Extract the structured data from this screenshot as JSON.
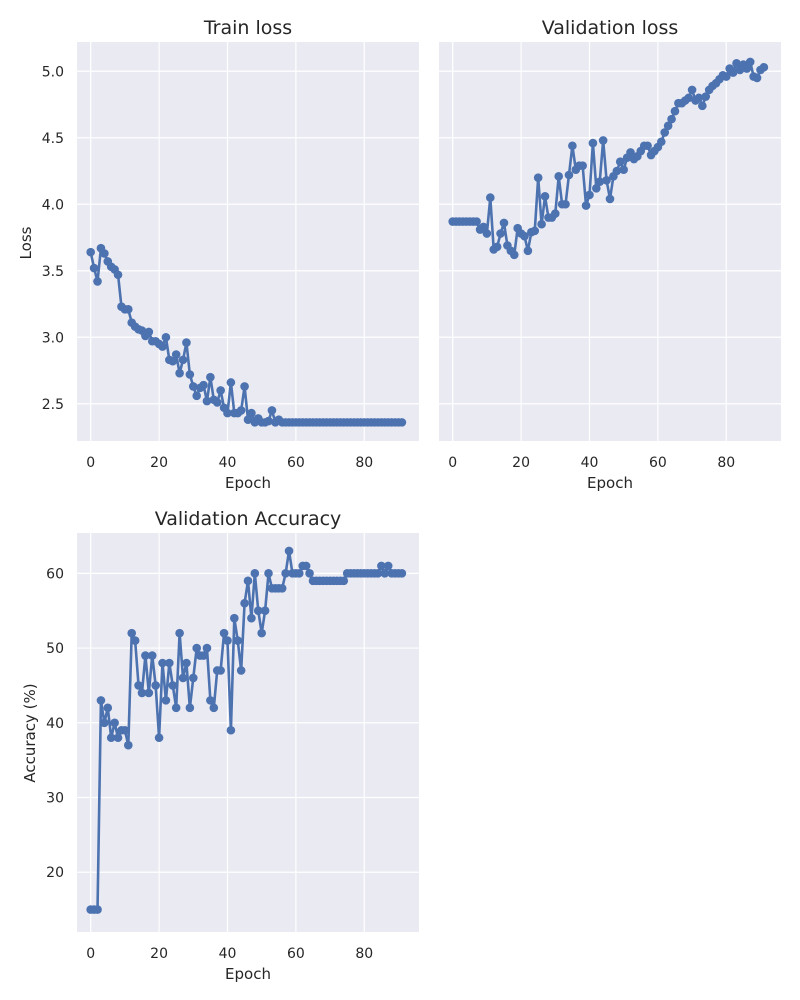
{
  "chart_data": [
    {
      "id": "train",
      "type": "line",
      "title": "Train loss",
      "xlabel": "Epoch",
      "ylabel": "Loss",
      "xlim": [
        -4,
        96
      ],
      "ylim": [
        2.22,
        5.22
      ],
      "xticks": [
        0,
        20,
        40,
        60,
        80
      ],
      "yticks": [
        2.5,
        3.0,
        3.5,
        4.0,
        4.5,
        5.0
      ],
      "ytick_labels": [
        "2.5",
        "3.0",
        "3.5",
        "4.0",
        "4.5",
        "5.0"
      ],
      "show_yticklabels": true,
      "grid": true,
      "x": [
        0,
        1,
        2,
        3,
        4,
        5,
        6,
        7,
        8,
        9,
        10,
        11,
        12,
        13,
        14,
        15,
        16,
        17,
        18,
        19,
        20,
        21,
        22,
        23,
        24,
        25,
        26,
        27,
        28,
        29,
        30,
        31,
        32,
        33,
        34,
        35,
        36,
        37,
        38,
        39,
        40,
        41,
        42,
        43,
        44,
        45,
        46,
        47,
        48,
        49,
        50,
        51,
        52,
        53,
        54,
        55,
        56,
        57,
        58,
        59,
        60,
        61,
        62,
        63,
        64,
        65,
        66,
        67,
        68,
        69,
        70,
        71,
        72,
        73,
        74,
        75,
        76,
        77,
        78,
        79,
        80,
        81,
        82,
        83,
        84,
        85,
        86,
        87,
        88,
        89,
        90,
        91
      ],
      "values": [
        3.64,
        3.52,
        3.42,
        3.67,
        3.63,
        3.57,
        3.53,
        3.51,
        3.47,
        3.23,
        3.21,
        3.21,
        3.11,
        3.08,
        3.06,
        3.05,
        3.01,
        3.04,
        2.97,
        2.97,
        2.95,
        2.93,
        3.0,
        2.83,
        2.82,
        2.87,
        2.73,
        2.83,
        2.96,
        2.72,
        2.63,
        2.56,
        2.62,
        2.64,
        2.52,
        2.7,
        2.53,
        2.51,
        2.6,
        2.47,
        2.43,
        2.66,
        2.43,
        2.43,
        2.45,
        2.63,
        2.38,
        2.43,
        2.36,
        2.39,
        2.36,
        2.36,
        2.37,
        2.45,
        2.36,
        2.38,
        2.36,
        2.36,
        2.36,
        2.36,
        2.36,
        2.36,
        2.36,
        2.36,
        2.36,
        2.36,
        2.36,
        2.36,
        2.36,
        2.36,
        2.36,
        2.36,
        2.36,
        2.36,
        2.36,
        2.36,
        2.36,
        2.36,
        2.36,
        2.36,
        2.36,
        2.36,
        2.36,
        2.36,
        2.36,
        2.36,
        2.36,
        2.36,
        2.36,
        2.36,
        2.36,
        2.36
      ],
      "color": "#4c72b0"
    },
    {
      "id": "valloss",
      "type": "line",
      "title": "Validation loss",
      "xlabel": "Epoch",
      "ylabel": "",
      "xlim": [
        -4,
        96
      ],
      "ylim": [
        2.22,
        5.22
      ],
      "xticks": [
        0,
        20,
        40,
        60,
        80
      ],
      "yticks": [
        2.5,
        3.0,
        3.5,
        4.0,
        4.5,
        5.0
      ],
      "ytick_labels": [],
      "show_yticklabels": false,
      "grid": true,
      "x": [
        0,
        1,
        2,
        3,
        4,
        5,
        6,
        7,
        8,
        9,
        10,
        11,
        12,
        13,
        14,
        15,
        16,
        17,
        18,
        19,
        20,
        21,
        22,
        23,
        24,
        25,
        26,
        27,
        28,
        29,
        30,
        31,
        32,
        33,
        34,
        35,
        36,
        37,
        38,
        39,
        40,
        41,
        42,
        43,
        44,
        45,
        46,
        47,
        48,
        49,
        50,
        51,
        52,
        53,
        54,
        55,
        56,
        57,
        58,
        59,
        60,
        61,
        62,
        63,
        64,
        65,
        66,
        67,
        68,
        69,
        70,
        71,
        72,
        73,
        74,
        75,
        76,
        77,
        78,
        79,
        80,
        81,
        82,
        83,
        84,
        85,
        86,
        87,
        88,
        89,
        90,
        91
      ],
      "values": [
        3.87,
        3.87,
        3.87,
        3.87,
        3.87,
        3.87,
        3.87,
        3.87,
        3.81,
        3.83,
        3.78,
        4.05,
        3.66,
        3.68,
        3.78,
        3.86,
        3.69,
        3.65,
        3.62,
        3.82,
        3.78,
        3.76,
        3.65,
        3.79,
        3.8,
        4.2,
        3.85,
        4.06,
        3.9,
        3.9,
        3.93,
        4.21,
        4.0,
        4.0,
        4.22,
        4.44,
        4.26,
        4.29,
        4.29,
        3.99,
        4.07,
        4.46,
        4.12,
        4.17,
        4.48,
        4.18,
        4.04,
        4.21,
        4.25,
        4.32,
        4.26,
        4.35,
        4.39,
        4.34,
        4.36,
        4.4,
        4.44,
        4.44,
        4.37,
        4.4,
        4.43,
        4.47,
        4.54,
        4.59,
        4.64,
        4.7,
        4.76,
        4.76,
        4.78,
        4.8,
        4.86,
        4.78,
        4.8,
        4.74,
        4.81,
        4.86,
        4.89,
        4.91,
        4.94,
        4.97,
        4.96,
        5.02,
        4.99,
        5.06,
        5.01,
        5.05,
        5.02,
        5.07,
        4.96,
        4.95,
        5.01,
        5.03
      ],
      "color": "#4c72b0"
    },
    {
      "id": "valacc",
      "type": "line",
      "title": "Validation Accuracy",
      "xlabel": "Epoch",
      "ylabel": "Accuracy (%)",
      "xlim": [
        -4,
        96
      ],
      "ylim": [
        12.0,
        65.4
      ],
      "xticks": [
        0,
        20,
        40,
        60,
        80
      ],
      "yticks": [
        20,
        30,
        40,
        50,
        60
      ],
      "ytick_labels": [
        "20",
        "30",
        "40",
        "50",
        "60"
      ],
      "show_yticklabels": true,
      "grid": true,
      "x": [
        0,
        1,
        2,
        3,
        4,
        5,
        6,
        7,
        8,
        9,
        10,
        11,
        12,
        13,
        14,
        15,
        16,
        17,
        18,
        19,
        20,
        21,
        22,
        23,
        24,
        25,
        26,
        27,
        28,
        29,
        30,
        31,
        32,
        33,
        34,
        35,
        36,
        37,
        38,
        39,
        40,
        41,
        42,
        43,
        44,
        45,
        46,
        47,
        48,
        49,
        50,
        51,
        52,
        53,
        54,
        55,
        56,
        57,
        58,
        59,
        60,
        61,
        62,
        63,
        64,
        65,
        66,
        67,
        68,
        69,
        70,
        71,
        72,
        73,
        74,
        75,
        76,
        77,
        78,
        79,
        80,
        81,
        82,
        83,
        84,
        85,
        86,
        87,
        88,
        89,
        90,
        91
      ],
      "values": [
        15,
        15,
        15,
        43,
        40,
        42,
        38,
        40,
        38,
        39,
        39,
        37,
        52,
        51,
        45,
        44,
        49,
        44,
        49,
        45,
        38,
        48,
        43,
        48,
        45,
        42,
        52,
        46,
        48,
        42,
        46,
        50,
        49,
        49,
        50,
        43,
        42,
        47,
        47,
        52,
        51,
        39,
        54,
        51,
        47,
        56,
        59,
        54,
        60,
        55,
        52,
        55,
        60,
        58,
        58,
        58,
        58,
        60,
        63,
        60,
        60,
        60,
        61,
        61,
        60,
        59,
        59,
        59,
        59,
        59,
        59,
        59,
        59,
        59,
        59,
        60,
        60,
        60,
        60,
        60,
        60,
        60,
        60,
        60,
        60,
        61,
        60,
        61,
        60,
        60,
        60,
        60
      ],
      "color": "#4c72b0"
    }
  ]
}
